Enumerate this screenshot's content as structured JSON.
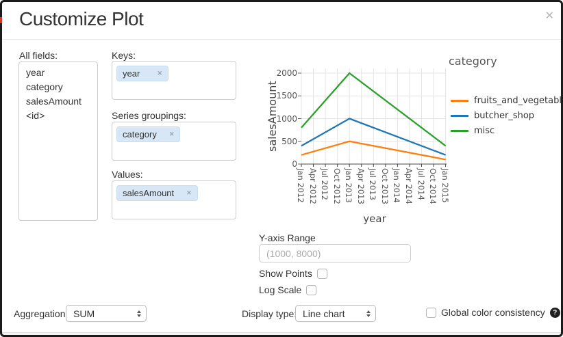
{
  "dialog": {
    "title": "Customize Plot"
  },
  "icons": {
    "close": "✕",
    "tag_remove": "✕",
    "help": "?"
  },
  "fields_panel": {
    "all_fields_label": "All fields:",
    "all_fields": [
      "year",
      "category",
      "salesAmount",
      "<id>"
    ],
    "keys_label": "Keys:",
    "keys_tags": [
      "year"
    ],
    "series_groupings_label": "Series groupings:",
    "series_groupings_tags": [
      "category"
    ],
    "values_label": "Values:",
    "values_tags": [
      "salesAmount"
    ]
  },
  "chart_data": {
    "type": "line",
    "xlabel": "year",
    "ylabel": "salesAmount",
    "ylim": [
      0,
      2000
    ],
    "yticks": [
      0,
      500,
      1000,
      1500,
      2000
    ],
    "grid": true,
    "legend_title": "category",
    "legend_position": "right",
    "categories": [
      "Jan 2012",
      "Apr 2012",
      "Jul 2012",
      "Oct 2012",
      "Jan 2013",
      "Apr 2013",
      "Jul 2013",
      "Oct 2013",
      "Jan 2014",
      "Apr 2014",
      "Jul 2014",
      "Oct 2014",
      "Jan 2015"
    ],
    "series": [
      {
        "name": "fruits_and_vegetables",
        "color": "#ff7f0e",
        "x": [
          "Jan 2012",
          "Jan 2013",
          "Jan 2015"
        ],
        "values": [
          200,
          500,
          100
        ]
      },
      {
        "name": "butcher_shop",
        "color": "#1f77b4",
        "x": [
          "Jan 2012",
          "Jan 2013",
          "Jan 2015"
        ],
        "values": [
          400,
          1000,
          200
        ]
      },
      {
        "name": "misc",
        "color": "#2ca02c",
        "x": [
          "Jan 2012",
          "Jan 2013",
          "Jan 2015"
        ],
        "values": [
          800,
          2000,
          400
        ]
      }
    ]
  },
  "options": {
    "y_axis_range_label": "Y-axis Range",
    "y_axis_range_placeholder": "(1000, 8000)",
    "y_axis_range_value": "",
    "show_points_label": "Show Points",
    "show_points_checked": false,
    "log_scale_label": "Log Scale",
    "log_scale_checked": false
  },
  "footer": {
    "aggregation_label": "Aggregation:",
    "aggregation_value": "SUM",
    "display_type_label": "Display type:",
    "display_type_value": "Line chart",
    "global_color_label": "Global color consistency",
    "global_color_checked": false
  }
}
